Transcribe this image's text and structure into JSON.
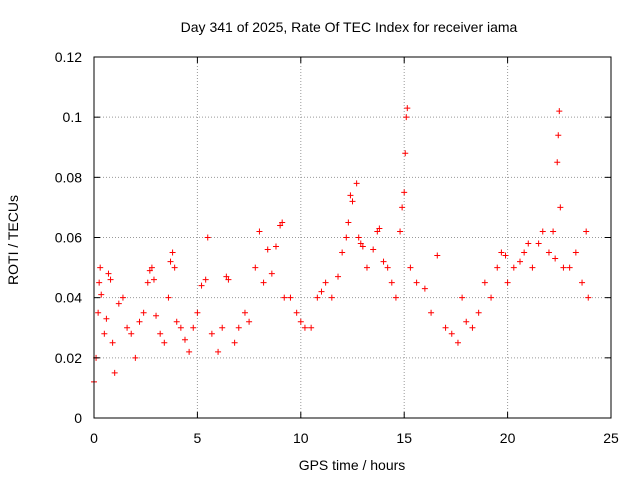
{
  "chart_data": {
    "type": "scatter",
    "title": "Day 341 of 2025, Rate Of TEC Index for receiver iama",
    "xlabel": "GPS time / hours",
    "ylabel": "ROTI / TECUs",
    "xlim": [
      0,
      25
    ],
    "ylim": [
      0,
      0.12
    ],
    "x_ticks": [
      0,
      5,
      10,
      15,
      20,
      25
    ],
    "x_tick_labels": [
      "0",
      "5",
      "10",
      "15",
      "20",
      "25"
    ],
    "y_ticks": [
      0,
      0.02,
      0.04,
      0.06,
      0.08,
      0.1,
      0.12
    ],
    "y_tick_labels": [
      "0",
      "0.02",
      "0.04",
      "0.06",
      "0.08",
      "0.1",
      "0.12"
    ],
    "grid": true,
    "marker": "plus",
    "series": [
      {
        "name": "ROTI",
        "color": "#ff0000",
        "points": [
          [
            0.0,
            0.012
          ],
          [
            0.1,
            0.02
          ],
          [
            0.2,
            0.035
          ],
          [
            0.25,
            0.045
          ],
          [
            0.3,
            0.05
          ],
          [
            0.35,
            0.041
          ],
          [
            0.5,
            0.028
          ],
          [
            0.6,
            0.033
          ],
          [
            0.7,
            0.048
          ],
          [
            0.8,
            0.046
          ],
          [
            0.9,
            0.025
          ],
          [
            1.0,
            0.015
          ],
          [
            1.2,
            0.038
          ],
          [
            1.4,
            0.04
          ],
          [
            1.6,
            0.03
          ],
          [
            1.8,
            0.028
          ],
          [
            2.0,
            0.02
          ],
          [
            2.2,
            0.032
          ],
          [
            2.4,
            0.035
          ],
          [
            2.6,
            0.045
          ],
          [
            2.7,
            0.049
          ],
          [
            2.8,
            0.05
          ],
          [
            2.9,
            0.046
          ],
          [
            3.0,
            0.034
          ],
          [
            3.2,
            0.028
          ],
          [
            3.4,
            0.025
          ],
          [
            3.6,
            0.04
          ],
          [
            3.7,
            0.052
          ],
          [
            3.8,
            0.055
          ],
          [
            3.9,
            0.05
          ],
          [
            4.0,
            0.032
          ],
          [
            4.2,
            0.03
          ],
          [
            4.4,
            0.026
          ],
          [
            4.6,
            0.022
          ],
          [
            4.8,
            0.03
          ],
          [
            5.0,
            0.035
          ],
          [
            5.2,
            0.044
          ],
          [
            5.4,
            0.046
          ],
          [
            5.5,
            0.06
          ],
          [
            5.7,
            0.028
          ],
          [
            6.0,
            0.022
          ],
          [
            6.2,
            0.03
          ],
          [
            6.4,
            0.047
          ],
          [
            6.5,
            0.046
          ],
          [
            6.8,
            0.025
          ],
          [
            7.0,
            0.03
          ],
          [
            7.3,
            0.035
          ],
          [
            7.5,
            0.032
          ],
          [
            7.8,
            0.05
          ],
          [
            8.0,
            0.062
          ],
          [
            8.2,
            0.045
          ],
          [
            8.4,
            0.056
          ],
          [
            8.6,
            0.048
          ],
          [
            8.8,
            0.057
          ],
          [
            9.0,
            0.064
          ],
          [
            9.1,
            0.065
          ],
          [
            9.2,
            0.04
          ],
          [
            9.5,
            0.04
          ],
          [
            9.8,
            0.035
          ],
          [
            10.0,
            0.032
          ],
          [
            10.2,
            0.03
          ],
          [
            10.5,
            0.03
          ],
          [
            10.8,
            0.04
          ],
          [
            11.0,
            0.042
          ],
          [
            11.2,
            0.045
          ],
          [
            11.5,
            0.04
          ],
          [
            11.8,
            0.047
          ],
          [
            12.0,
            0.055
          ],
          [
            12.2,
            0.06
          ],
          [
            12.3,
            0.065
          ],
          [
            12.4,
            0.074
          ],
          [
            12.5,
            0.072
          ],
          [
            12.7,
            0.078
          ],
          [
            12.8,
            0.06
          ],
          [
            12.9,
            0.058
          ],
          [
            13.0,
            0.057
          ],
          [
            13.2,
            0.05
          ],
          [
            13.5,
            0.056
          ],
          [
            13.7,
            0.062
          ],
          [
            13.8,
            0.063
          ],
          [
            14.0,
            0.052
          ],
          [
            14.2,
            0.05
          ],
          [
            14.4,
            0.045
          ],
          [
            14.6,
            0.04
          ],
          [
            14.8,
            0.062
          ],
          [
            14.9,
            0.07
          ],
          [
            15.0,
            0.075
          ],
          [
            15.05,
            0.088
          ],
          [
            15.1,
            0.1
          ],
          [
            15.15,
            0.103
          ],
          [
            15.3,
            0.05
          ],
          [
            15.6,
            0.045
          ],
          [
            16.0,
            0.043
          ],
          [
            16.3,
            0.035
          ],
          [
            16.6,
            0.054
          ],
          [
            17.0,
            0.03
          ],
          [
            17.3,
            0.028
          ],
          [
            17.6,
            0.025
          ],
          [
            17.8,
            0.04
          ],
          [
            18.0,
            0.032
          ],
          [
            18.3,
            0.03
          ],
          [
            18.6,
            0.035
          ],
          [
            18.9,
            0.045
          ],
          [
            19.2,
            0.04
          ],
          [
            19.5,
            0.05
          ],
          [
            19.7,
            0.055
          ],
          [
            19.9,
            0.054
          ],
          [
            20.0,
            0.045
          ],
          [
            20.3,
            0.05
          ],
          [
            20.6,
            0.052
          ],
          [
            20.8,
            0.055
          ],
          [
            21.0,
            0.058
          ],
          [
            21.2,
            0.05
          ],
          [
            21.5,
            0.058
          ],
          [
            21.7,
            0.062
          ],
          [
            22.0,
            0.055
          ],
          [
            22.2,
            0.062
          ],
          [
            22.3,
            0.053
          ],
          [
            22.4,
            0.085
          ],
          [
            22.45,
            0.094
          ],
          [
            22.5,
            0.102
          ],
          [
            22.55,
            0.07
          ],
          [
            22.7,
            0.05
          ],
          [
            23.0,
            0.05
          ],
          [
            23.3,
            0.055
          ],
          [
            23.6,
            0.045
          ],
          [
            23.8,
            0.062
          ],
          [
            23.9,
            0.04
          ]
        ]
      }
    ]
  }
}
